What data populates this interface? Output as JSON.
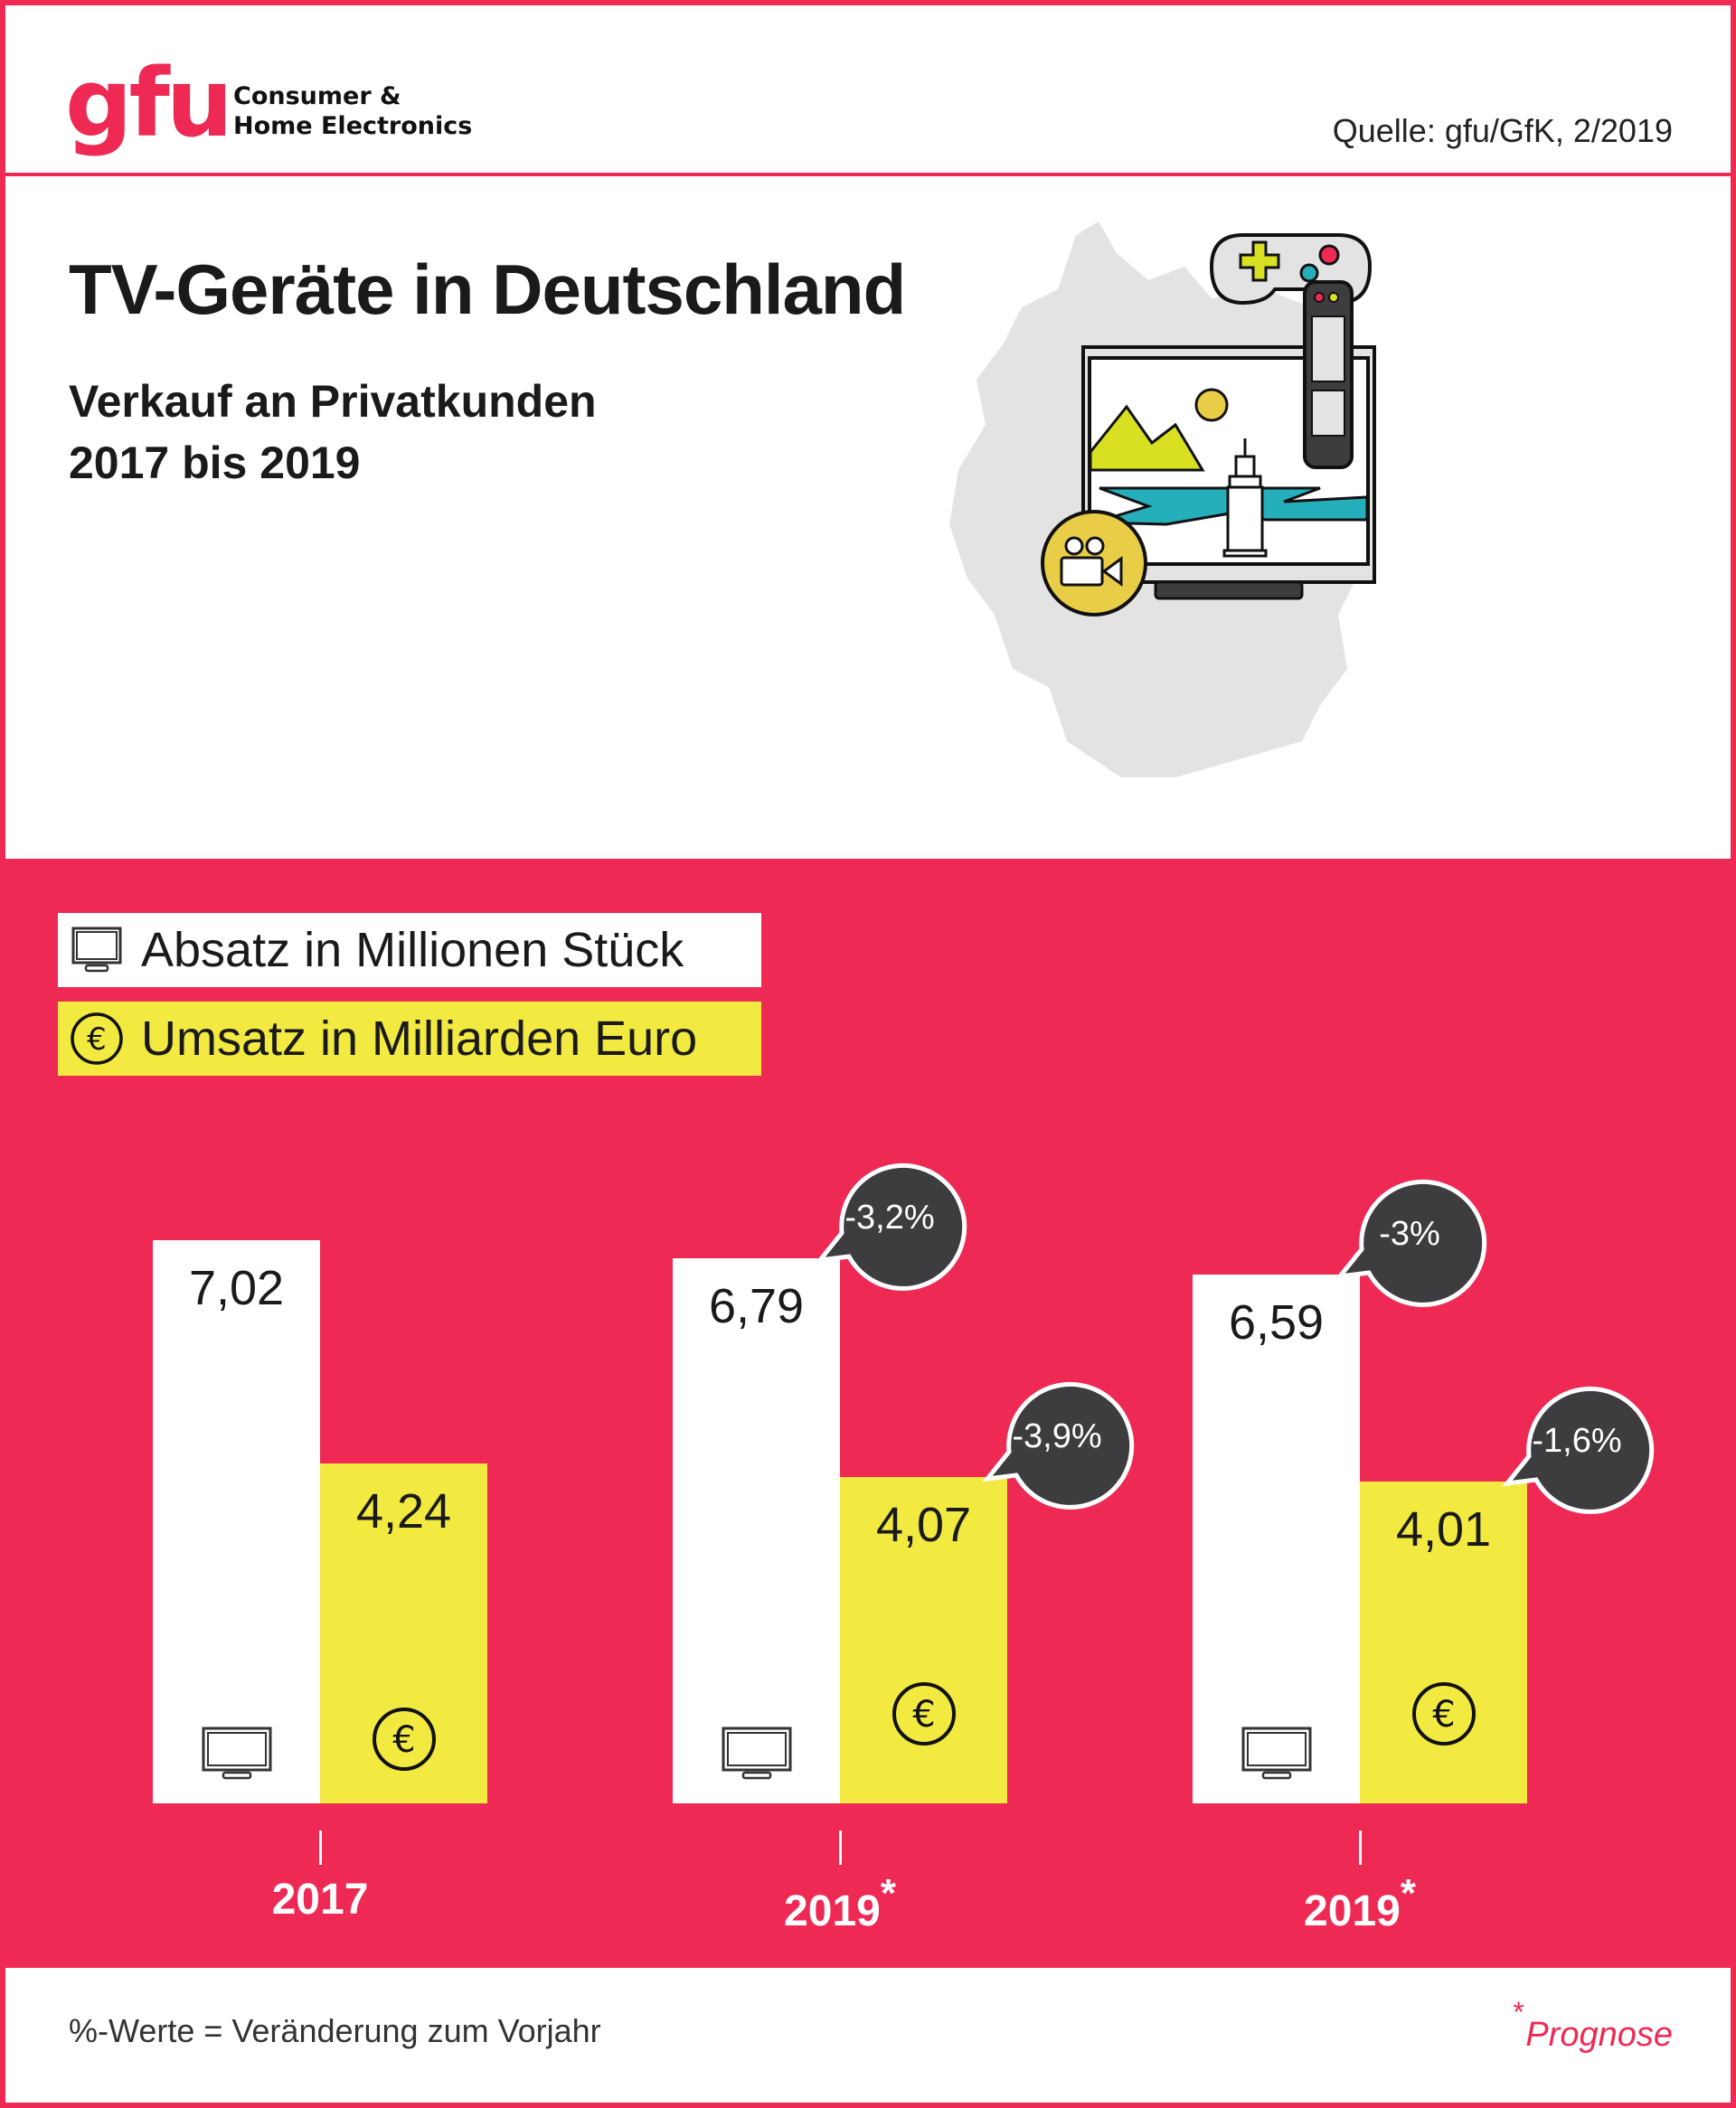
{
  "header": {
    "logo": "gfu",
    "logo_sub_line1": "Consumer &",
    "logo_sub_line2": "Home Electronics",
    "source": "Quelle: gfu/GfK, 2/2019"
  },
  "title": "TV-Geräte in Deutschland",
  "subtitle_line1": "Verkauf an Privatkunden",
  "subtitle_line2": "2017 bis 2019",
  "colors": {
    "brand_red": "#ee2a54",
    "yellow": "#f2ea41",
    "bubble": "#3d3d3f",
    "white": "#ffffff"
  },
  "legend": {
    "units": {
      "label": "Absatz in Millionen Stück",
      "icon": "tv-icon"
    },
    "revenue": {
      "label": "Umsatz in Milliarden Euro",
      "icon": "euro-coin-icon"
    }
  },
  "chart_data": {
    "type": "bar",
    "title": "TV-Geräte in Deutschland – Verkauf an Privatkunden 2017 bis 2019",
    "categories": [
      "2017",
      "2019",
      "2019"
    ],
    "category_marks": [
      "",
      "*",
      "*"
    ],
    "series": [
      {
        "name": "Absatz in Millionen Stück",
        "values": [
          7.02,
          6.79,
          6.59
        ],
        "labels": [
          "7,02",
          "6,79",
          "6,59"
        ],
        "change_labels": [
          "",
          "-3,2%",
          "-3%"
        ],
        "color": "#ffffff"
      },
      {
        "name": "Umsatz in Milliarden Euro",
        "values": [
          4.24,
          4.07,
          4.01
        ],
        "labels": [
          "4,24",
          "4,07",
          "4,01"
        ],
        "change_labels": [
          "",
          "-3,9%",
          "-1,6%"
        ],
        "color": "#f2ea41"
      }
    ],
    "xlabel": "",
    "ylabel": "",
    "ylim": [
      0,
      7.02
    ],
    "grid": false,
    "legend_position": "top-left"
  },
  "footer": {
    "note": "%-Werte = Veränderung zum Vorjahr",
    "forecast_mark": "*",
    "forecast_label": "Prognose"
  },
  "illustration": {
    "elements": [
      "germany-map",
      "gamepad-icon",
      "tv-icon",
      "remote-control-icon",
      "video-camera-icon"
    ]
  }
}
